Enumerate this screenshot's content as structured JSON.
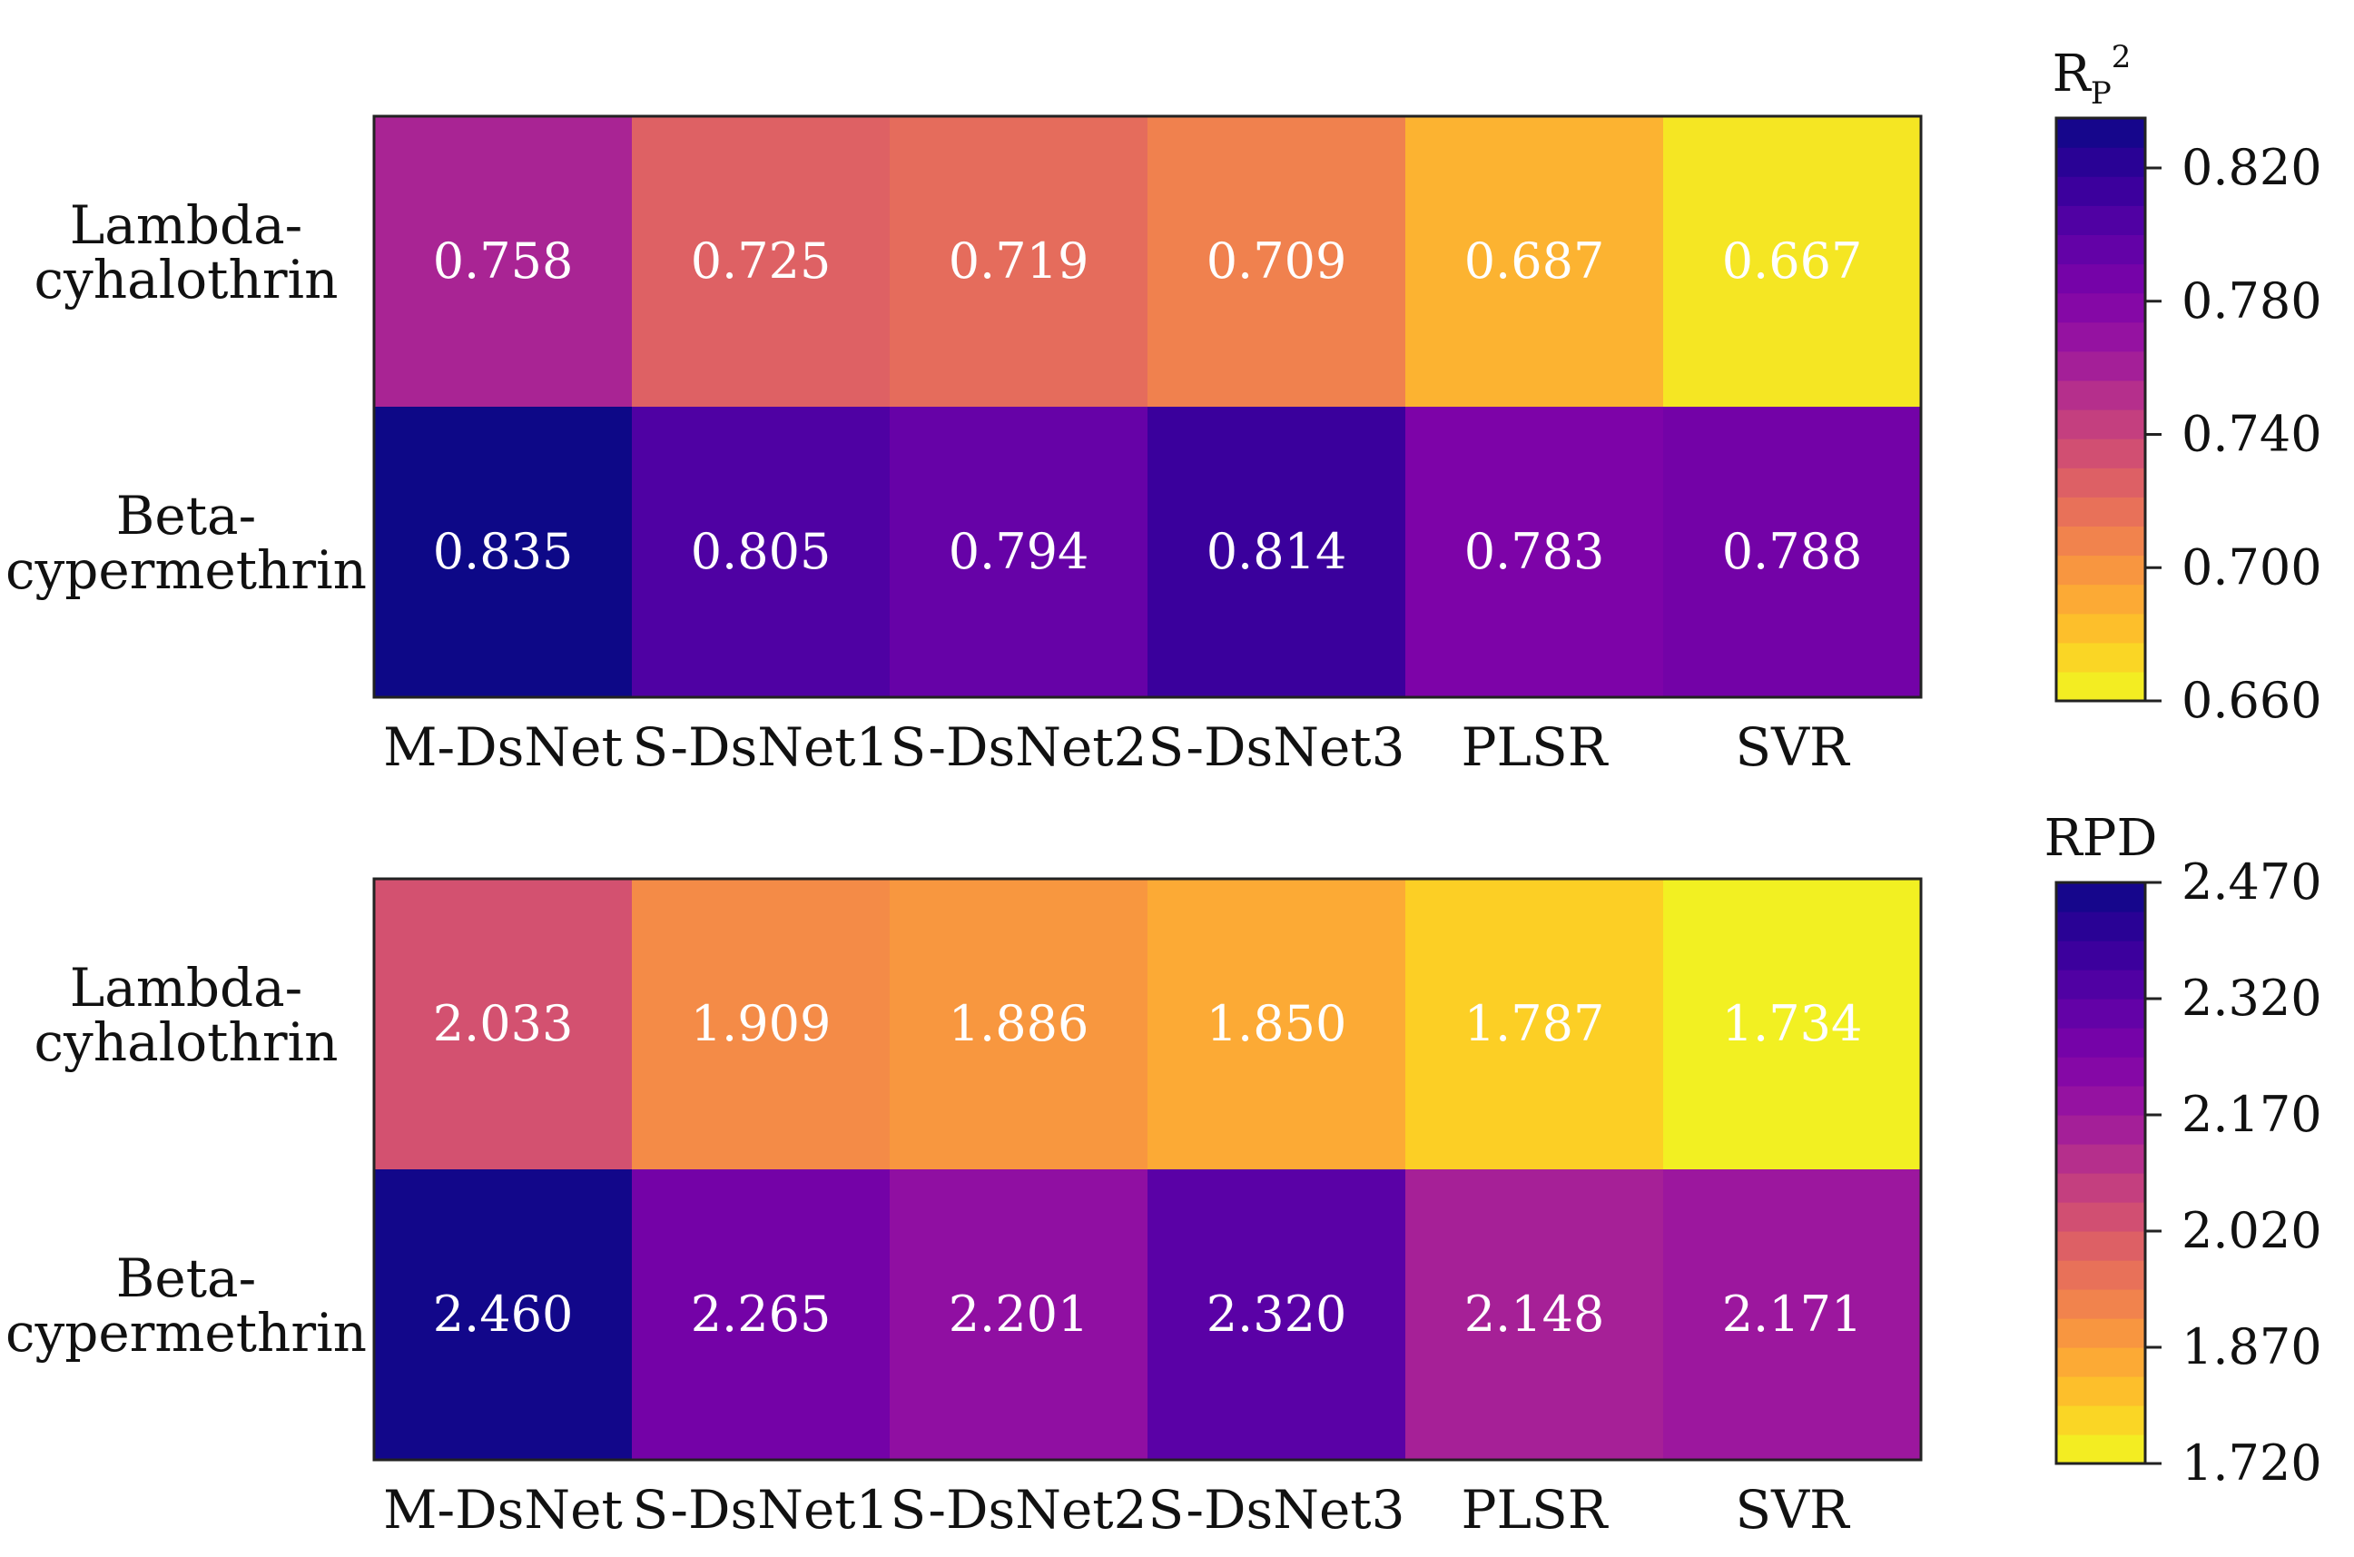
{
  "chart_data": [
    {
      "type": "heatmap",
      "metric": "Rp2",
      "colorbar_title": {
        "main": "R",
        "sub": "P",
        "sup": "2"
      },
      "columns": [
        "M-DsNet",
        "S-DsNet1",
        "S-DsNet2",
        "S-DsNet3",
        "PLSR",
        "SVR"
      ],
      "rows": [
        {
          "label_lines": [
            "Lambda-",
            "cyhalothrin"
          ],
          "values": [
            0.758,
            0.725,
            0.719,
            0.709,
            0.687,
            0.667
          ],
          "labels": [
            "0.758",
            "0.725",
            "0.719",
            "0.709",
            "0.687",
            "0.667"
          ]
        },
        {
          "label_lines": [
            "Beta-",
            "cypermethrin"
          ],
          "values": [
            0.835,
            0.805,
            0.794,
            0.814,
            0.783,
            0.788
          ],
          "labels": [
            "0.835",
            "0.805",
            "0.794",
            "0.814",
            "0.783",
            "0.788"
          ]
        }
      ],
      "color_range": [
        0.66,
        0.835
      ],
      "colorbar_ticks": [
        0.82,
        0.78,
        0.74,
        0.7,
        0.66
      ],
      "colorbar_tick_labels": [
        "0.820",
        "0.780",
        "0.740",
        "0.700",
        "0.660"
      ],
      "colormap": "plasma_r (discrete)"
    },
    {
      "type": "heatmap",
      "metric": "RPD",
      "colorbar_title": {
        "main": "RPD",
        "sub": "",
        "sup": ""
      },
      "columns": [
        "M-DsNet",
        "S-DsNet1",
        "S-DsNet2",
        "S-DsNet3",
        "PLSR",
        "SVR"
      ],
      "rows": [
        {
          "label_lines": [
            "Lambda-",
            "cyhalothrin"
          ],
          "values": [
            2.033,
            1.909,
            1.886,
            1.85,
            1.787,
            1.734
          ],
          "labels": [
            "2.033",
            "1.909",
            "1.886",
            "1.850",
            "1.787",
            "1.734"
          ]
        },
        {
          "label_lines": [
            "Beta-",
            "cypermethrin"
          ],
          "values": [
            2.46,
            2.265,
            2.201,
            2.32,
            2.148,
            2.171
          ],
          "labels": [
            "2.460",
            "2.265",
            "2.201",
            "2.320",
            "2.148",
            "2.171"
          ]
        }
      ],
      "color_range": [
        1.72,
        2.47
      ],
      "colorbar_ticks": [
        2.47,
        2.32,
        2.17,
        2.02,
        1.87,
        1.72
      ],
      "colorbar_tick_labels": [
        "2.470",
        "2.320",
        "2.170",
        "2.020",
        "1.870",
        "1.720"
      ],
      "colormap": "plasma_r (discrete)"
    }
  ]
}
